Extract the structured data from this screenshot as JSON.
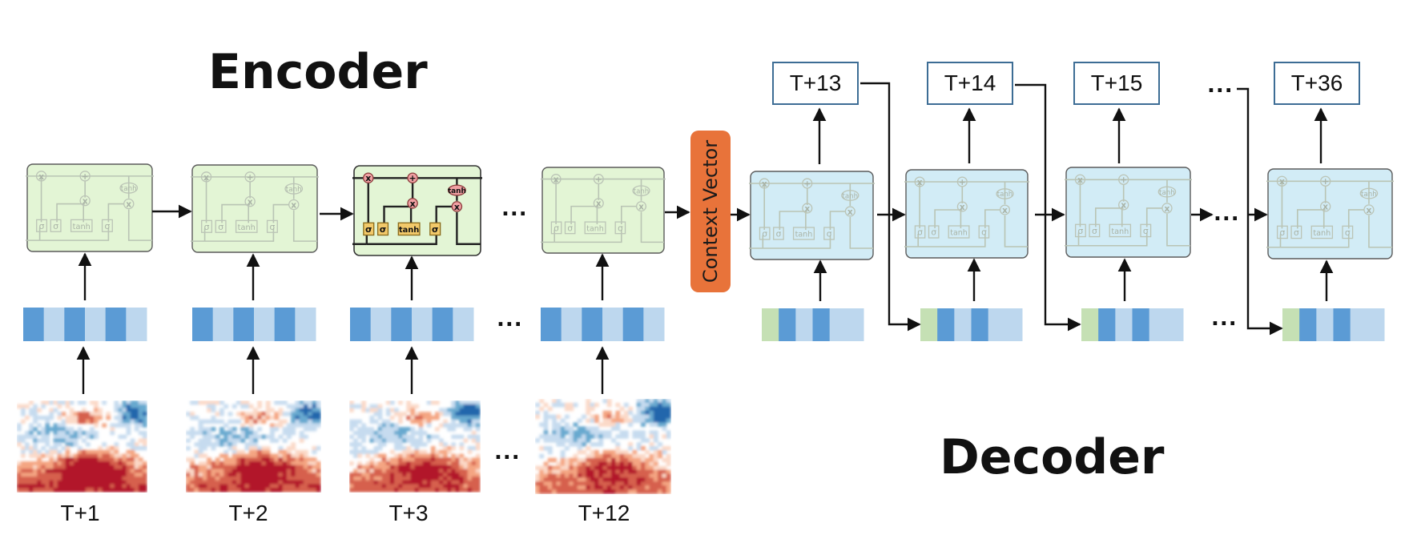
{
  "encoder_title": "Encoder",
  "decoder_title": "Decoder",
  "context_vector_label": "Context Vector",
  "ellipsis": "...",
  "input_time_labels": [
    "T+1",
    "T+2",
    "T+3",
    "T+12"
  ],
  "output_time_labels": [
    "T+13",
    "T+14",
    "T+15",
    "T+36"
  ],
  "lstm_gate_labels": {
    "sigma": "σ",
    "tanh": "tanh",
    "multiply": "x",
    "add": "+"
  },
  "colors": {
    "encoder_cell": "#e3f5d5",
    "decoder_cell": "#d2ecf6",
    "context_vector": "#e8733a",
    "embed_dark": "#5b9bd5",
    "embed_light": "#bdd7ee",
    "embed_green": "#c5e0b4",
    "output_border": "#3d6d95"
  }
}
